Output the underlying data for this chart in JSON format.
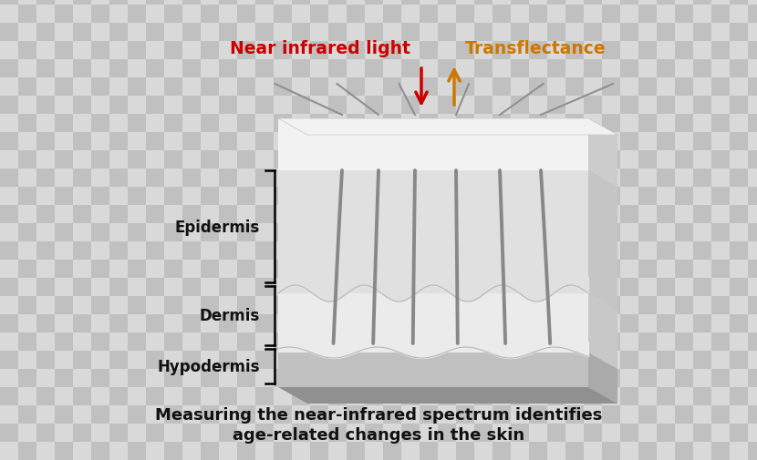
{
  "title_line1": "Measuring the near-infrared spectrum identifies",
  "title_line2": "age-related changes in the skin",
  "label_nir": "Near infrared light",
  "label_trans": "Transflectance",
  "label_epidermis": "Epidermis",
  "label_dermis": "Dermis",
  "label_hypodermis": "Hypodermis",
  "color_nir": "#cc0000",
  "color_trans": "#cc7700",
  "color_black": "#111111",
  "checker_light": "#d9d9d9",
  "checker_dark": "#c0c0c0",
  "skin_top_color": "#f2f2f2",
  "skin_epi_color": "#e0e0e0",
  "skin_derm_color": "#ebebeb",
  "skin_hypo_color": "#c0c0c0",
  "skin_base_color": "#909090",
  "hair_color": "#888888",
  "side_color": "#d0d0d0",
  "background": "#ffffff"
}
